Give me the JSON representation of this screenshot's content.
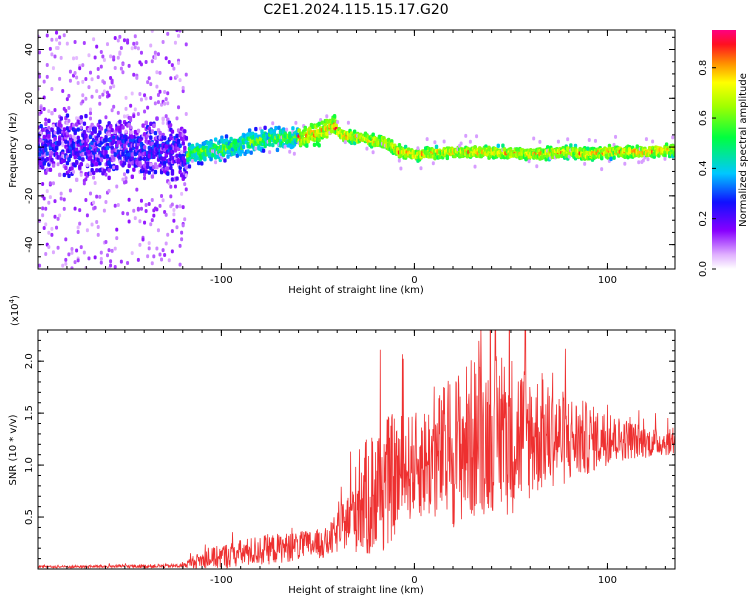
{
  "title": "C2E1.2024.115.15.17.G20",
  "colors": {
    "snr_line": "#ee3030",
    "axes": "#000000",
    "background": "#ffffff"
  },
  "chart_data": [
    {
      "type": "heatmap",
      "title": "",
      "xlabel": "Height of straight line (km)",
      "ylabel": "Frequency (Hz)",
      "xlim": [
        -195,
        135
      ],
      "ylim": [
        -50,
        48
      ],
      "x_ticks": [
        -100,
        0,
        100
      ],
      "x_tick_labels": [
        "-100",
        "0",
        "100"
      ],
      "y_ticks": [
        -40,
        -20,
        0,
        20,
        40
      ],
      "y_tick_labels": [
        "-40",
        "-20",
        "0",
        "20",
        "40"
      ],
      "ridge": {
        "x": [
          -195,
          -160,
          -130,
          -118,
          -100,
          -80,
          -60,
          -50,
          -42,
          -38,
          -25,
          -15,
          -8,
          0,
          20,
          40,
          60,
          80,
          90,
          100,
          120,
          135
        ],
        "freq": [
          0,
          0,
          -1,
          -3,
          -1,
          3,
          4,
          6,
          9,
          5,
          3,
          2,
          -2,
          -3,
          -2,
          -2,
          -3,
          -2,
          -3,
          -2,
          -2,
          -1
        ]
      },
      "colorbar": {
        "label": "Normalized spectral amplitude",
        "range": [
          0.0,
          0.95
        ],
        "ticks": [
          0.0,
          0.2,
          0.4,
          0.6,
          0.8
        ],
        "tick_labels": [
          "0.0",
          "0.2",
          "0.4",
          "0.6",
          "0.8"
        ]
      },
      "grid": false,
      "legend": "none"
    },
    {
      "type": "line",
      "title": "",
      "xlabel": "Height of straight line (km)",
      "ylabel": "SNR (10 * v/v)",
      "y_multiplier": "(x10",
      "y_multiplier_exp": "4",
      "y_multiplier_close": ")",
      "xlim": [
        -195,
        135
      ],
      "ylim": [
        0,
        2.3
      ],
      "x_ticks": [
        -100,
        0,
        100
      ],
      "x_tick_labels": [
        "-100",
        "0",
        "100"
      ],
      "y_ticks": [
        0.5,
        1.0,
        1.5,
        2.0
      ],
      "y_tick_labels": [
        "0.5",
        "1.0",
        "1.5",
        "2.0"
      ],
      "envelope": {
        "x": [
          -195,
          -120,
          -115,
          -100,
          -80,
          -60,
          -45,
          -35,
          -30,
          -20,
          -10,
          0,
          10,
          20,
          30,
          40,
          50,
          60,
          70,
          80,
          90,
          100,
          110,
          120,
          135
        ],
        "mean": [
          0.02,
          0.03,
          0.07,
          0.12,
          0.18,
          0.22,
          0.25,
          0.45,
          0.6,
          0.75,
          0.9,
          1.0,
          1.05,
          1.15,
          1.25,
          1.3,
          1.3,
          1.3,
          1.28,
          1.25,
          1.25,
          1.25,
          1.25,
          1.22,
          1.22
        ],
        "amp": [
          0.01,
          0.02,
          0.06,
          0.12,
          0.15,
          0.14,
          0.15,
          0.25,
          0.45,
          0.7,
          0.6,
          0.5,
          0.6,
          0.75,
          0.8,
          0.75,
          0.8,
          0.65,
          0.5,
          0.45,
          0.35,
          0.25,
          0.2,
          0.15,
          0.12
        ]
      },
      "series": [
        {
          "values_note": "",
          "color": "#ee3030"
        }
      ],
      "grid": false,
      "legend": "none"
    }
  ]
}
